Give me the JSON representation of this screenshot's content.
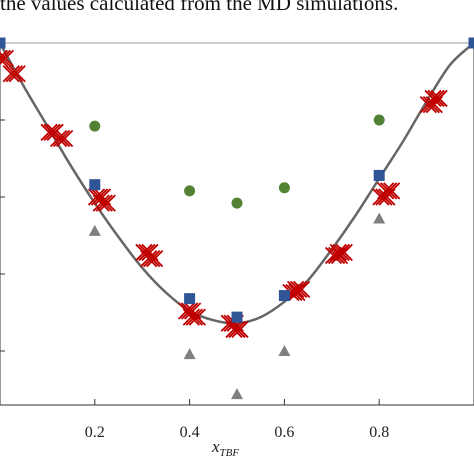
{
  "caption": "the values calculated from the MD simulations.",
  "chart_data": {
    "type": "scatter",
    "title": "",
    "xlabel": "x",
    "xlabel_sub": "TBF",
    "ylabel": "",
    "xlim": [
      0,
      1
    ],
    "ylim": [
      -1.1,
      0.05
    ],
    "x_ticks": [
      0.2,
      0.4,
      0.6,
      0.8
    ],
    "x_tick_labels": [
      "0.2",
      "0.4",
      "0.6",
      "0.8"
    ],
    "colors": {
      "fit_line": "#666666",
      "red_cross": "#c00000",
      "blue_square": "#2f5597",
      "green_circle": "#548235",
      "gray_triangle": "#7f7f7f",
      "frame": "#999999"
    },
    "series": [
      {
        "marker": "fit-line",
        "x": [
          0.0,
          0.05,
          0.1,
          0.15,
          0.2,
          0.25,
          0.3,
          0.35,
          0.4,
          0.45,
          0.5,
          0.55,
          0.6,
          0.65,
          0.7,
          0.75,
          0.8,
          0.85,
          0.9,
          0.95,
          1.0
        ],
        "y": [
          0.0,
          -0.14,
          -0.27,
          -0.4,
          -0.52,
          -0.63,
          -0.73,
          -0.81,
          -0.87,
          -0.9,
          -0.91,
          -0.89,
          -0.84,
          -0.77,
          -0.67,
          -0.56,
          -0.44,
          -0.32,
          -0.19,
          -0.07,
          0.0
        ]
      },
      {
        "marker": "cross",
        "x": [
          0.005,
          0.03,
          0.11,
          0.13,
          0.21,
          0.22,
          0.31,
          0.32,
          0.4,
          0.41,
          0.49,
          0.5,
          0.62,
          0.63,
          0.71,
          0.72,
          0.81,
          0.82,
          0.91,
          0.92
        ],
        "y": [
          -0.05,
          -0.1,
          -0.29,
          -0.31,
          -0.5,
          -0.52,
          -0.68,
          -0.7,
          -0.87,
          -0.89,
          -0.91,
          -0.93,
          -0.81,
          -0.8,
          -0.69,
          -0.68,
          -0.5,
          -0.48,
          -0.2,
          -0.18
        ]
      },
      {
        "marker": "square",
        "x": [
          0.0,
          0.2,
          0.4,
          0.5,
          0.6,
          0.8,
          1.0
        ],
        "y": [
          0.0,
          -0.46,
          -0.83,
          -0.89,
          -0.82,
          -0.43,
          0.0
        ]
      },
      {
        "marker": "circle",
        "x": [
          0.2,
          0.4,
          0.5,
          0.6,
          0.8
        ],
        "y": [
          -0.27,
          -0.48,
          -0.52,
          -0.47,
          -0.25
        ]
      },
      {
        "marker": "triangle",
        "x": [
          0.2,
          0.4,
          0.5,
          0.6,
          0.8
        ],
        "y": [
          -0.61,
          -1.01,
          -1.14,
          -1.0,
          -0.57
        ]
      }
    ]
  }
}
